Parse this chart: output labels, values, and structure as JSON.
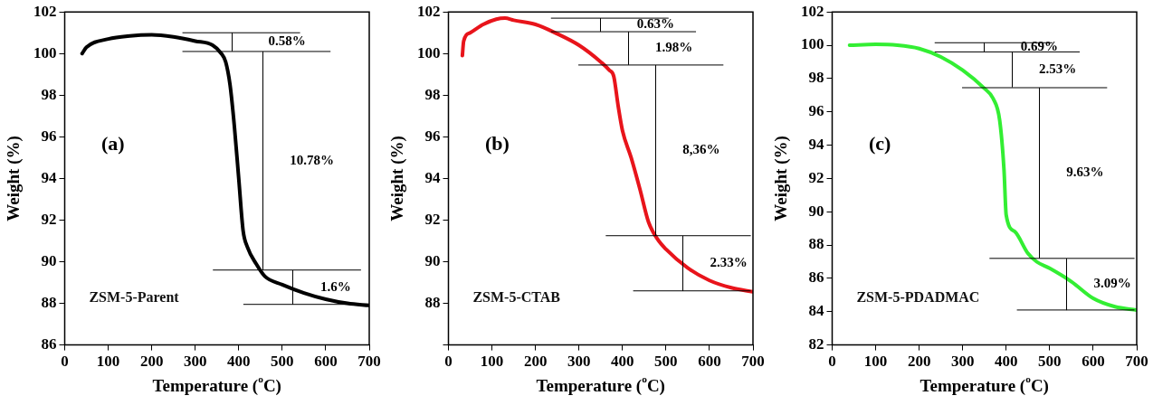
{
  "chart_data": [
    {
      "type": "line",
      "xlabel": "Temperature ($^{o}$C)",
      "ylabel": "Weight (%)",
      "xlim": [
        0,
        700
      ],
      "xticks": [
        0,
        100,
        200,
        300,
        400,
        500,
        600,
        700
      ],
      "ylim": [
        86,
        102
      ],
      "yticks": [
        86,
        88,
        90,
        92,
        94,
        96,
        98,
        100,
        102
      ],
      "grid": false,
      "legend": false,
      "series": [
        {
          "name": "ZSM-5-Parent",
          "color": "#000000",
          "x": [
            40,
            50,
            100,
            150,
            200,
            250,
            300,
            340,
            360,
            370,
            380,
            390,
            400,
            410,
            420,
            440,
            460,
            500,
            550,
            600,
            650,
            700
          ],
          "values": [
            100.0,
            100.3,
            100.7,
            100.85,
            100.9,
            100.8,
            100.6,
            100.4,
            100.0,
            99.6,
            98.5,
            96.5,
            94.0,
            91.5,
            90.7,
            89.9,
            89.3,
            88.9,
            88.5,
            88.2,
            88.0,
            87.9
          ]
        }
      ],
      "ref_lines": [
        {
          "axis": "y",
          "value": 101.0
        },
        {
          "axis": "y",
          "value": 100.1
        },
        {
          "axis": "y",
          "value": 89.6
        },
        {
          "axis": "y",
          "value": 87.95
        }
      ],
      "annotations": [
        "(a)",
        "0.58%",
        "10.78%",
        "1.6%"
      ]
    },
    {
      "type": "line",
      "xlabel": "Temperature ($^{o}$C)",
      "ylabel": "Weight (%)",
      "xlim": [
        0,
        700
      ],
      "xticks": [
        0,
        100,
        200,
        300,
        400,
        500,
        600,
        700
      ],
      "ylim": [
        86,
        102
      ],
      "yticks": [
        {
          "value": 86,
          "label": null
        },
        88,
        90,
        92,
        94,
        96,
        98,
        100,
        102
      ],
      "grid": false,
      "legend": false,
      "series": [
        {
          "name": "ZSM-5-CTAB",
          "color": "#e8141b",
          "x": [
            32,
            35,
            50,
            80,
            110,
            130,
            150,
            200,
            250,
            300,
            350,
            370,
            380,
            390,
            400,
            420,
            440,
            460,
            480,
            500,
            550,
            600,
            650,
            700
          ],
          "values": [
            99.9,
            100.6,
            101.0,
            101.4,
            101.65,
            101.7,
            101.6,
            101.4,
            100.95,
            100.4,
            99.6,
            99.2,
            98.9,
            97.5,
            96.3,
            95.0,
            93.5,
            91.9,
            91.1,
            90.6,
            89.7,
            89.1,
            88.75,
            88.55
          ]
        }
      ],
      "ref_lines": [
        {
          "axis": "y",
          "value": 101.7
        },
        {
          "axis": "y",
          "value": 101.05
        },
        {
          "axis": "y",
          "value": 99.45
        },
        {
          "axis": "y",
          "value": 91.25
        },
        {
          "axis": "y",
          "value": 88.6
        }
      ],
      "annotations": [
        "(b)",
        "0.63%",
        "1.98%",
        "8,36%",
        "2.33%"
      ]
    },
    {
      "type": "line",
      "xlabel": "Temperature ($^{o}$C)",
      "ylabel": "Weight (%)",
      "xlim": [
        0,
        700
      ],
      "xticks": [
        0,
        100,
        200,
        300,
        400,
        500,
        600,
        700
      ],
      "ylim": [
        82,
        102
      ],
      "yticks": [
        82,
        84,
        86,
        88,
        90,
        92,
        94,
        96,
        98,
        100,
        102
      ],
      "grid": false,
      "legend": false,
      "series": [
        {
          "name": "ZSM-5-PDADMAC",
          "color": "#33ee33",
          "x": [
            40,
            100,
            150,
            200,
            250,
            300,
            350,
            370,
            385,
            395,
            400,
            420,
            450,
            470,
            500,
            550,
            600,
            650,
            700
          ],
          "values": [
            100.0,
            100.05,
            100.0,
            99.8,
            99.3,
            98.5,
            97.4,
            96.8,
            95.5,
            92.5,
            89.8,
            88.8,
            87.5,
            87.0,
            86.6,
            85.8,
            84.8,
            84.3,
            84.1
          ]
        }
      ],
      "ref_lines": [
        {
          "axis": "y",
          "value": 100.15
        },
        {
          "axis": "y",
          "value": 99.6
        },
        {
          "axis": "y",
          "value": 97.45
        },
        {
          "axis": "y",
          "value": 87.2
        },
        {
          "axis": "y",
          "value": 84.1
        }
      ],
      "annotations": [
        "(c)",
        "0.69%",
        "2.53%",
        "9.63%",
        "3.09%"
      ]
    }
  ]
}
